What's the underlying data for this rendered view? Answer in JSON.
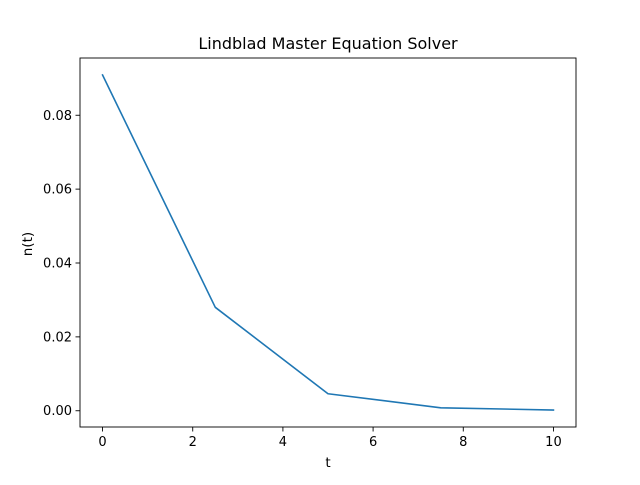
{
  "chart_data": {
    "type": "line",
    "title": "Lindblad Master Equation Solver",
    "xlabel": "t",
    "ylabel": "n(t)",
    "xlim": [
      -0.5,
      10.5
    ],
    "ylim": [
      -0.0044,
      0.0955
    ],
    "xticks": [
      0,
      2,
      4,
      6,
      8,
      10
    ],
    "xtick_labels": [
      "0",
      "2",
      "4",
      "6",
      "8",
      "10"
    ],
    "yticks": [
      0.0,
      0.02,
      0.04,
      0.06,
      0.08
    ],
    "ytick_labels": [
      "0.00",
      "0.02",
      "0.04",
      "0.06",
      "0.08"
    ],
    "grid": false,
    "series": [
      {
        "x": [
          0,
          2.5,
          5,
          7.5,
          10
        ],
        "y": [
          0.0909,
          0.028,
          0.0046,
          0.0008,
          0.0002
        ],
        "color": "#1f77b4"
      }
    ]
  }
}
